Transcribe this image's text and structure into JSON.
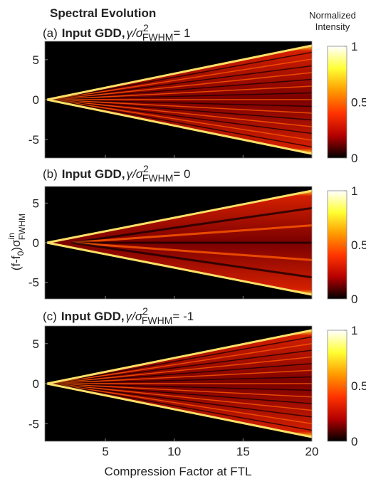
{
  "figure": {
    "title": "Spectral Evolution",
    "ylabel": [
      "(f-f",
      "0",
      ")σ",
      "in",
      "FWHM"
    ],
    "xlabel": "Compression Factor at FTL",
    "colorbar_label": [
      "Normalized",
      "Intensity"
    ]
  },
  "chart_data": [
    {
      "type": "heatmap",
      "title": [
        "(a)",
        "Input GDD,",
        "γ/σ",
        "2",
        "FWHM",
        "= 1"
      ],
      "xlim": [
        0.6,
        20
      ],
      "xticks": [
        5,
        10,
        15,
        20
      ],
      "ylim": [
        -7.3,
        7.3
      ],
      "yticks": [
        -5,
        0,
        5
      ],
      "clim": [
        0,
        1
      ],
      "cticks": [
        0,
        0.5,
        1
      ],
      "colormap": "hot"
    },
    {
      "type": "heatmap",
      "title": [
        "(b)",
        "Input GDD,",
        "γ/σ",
        "2",
        "FWHM",
        "= 0"
      ],
      "xlim": [
        0.6,
        20
      ],
      "xticks": [
        5,
        10,
        15,
        20
      ],
      "ylim": [
        -7.1,
        7.1
      ],
      "yticks": [
        -5,
        0,
        5
      ],
      "clim": [
        0,
        1
      ],
      "cticks": [
        0,
        0.5,
        1
      ],
      "colormap": "hot"
    },
    {
      "type": "heatmap",
      "title": [
        "(c)",
        "Input GDD,",
        "γ/σ",
        "2",
        "FWHM",
        "= -1"
      ],
      "xlim": [
        0.6,
        20
      ],
      "xticks": [
        5,
        10,
        15,
        20
      ],
      "ylim": [
        -7.2,
        7.2
      ],
      "yticks": [
        -5,
        0,
        5
      ],
      "clim": [
        0,
        1
      ],
      "cticks": [
        0,
        0.5,
        1
      ],
      "colormap": "hot"
    }
  ]
}
